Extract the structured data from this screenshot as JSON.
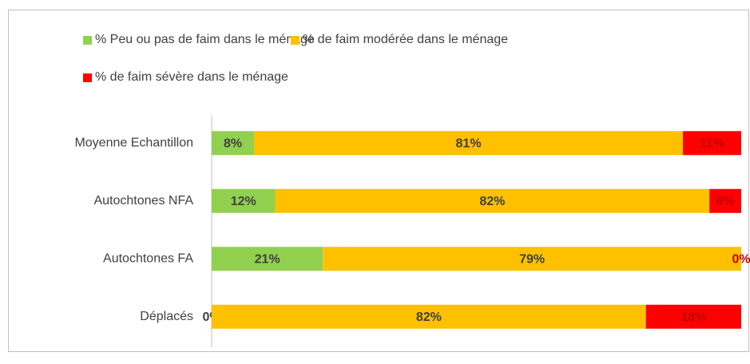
{
  "chart_data": {
    "type": "stacked-bar-horizontal",
    "categories": [
      "Moyenne Echantillon",
      "Autochtones NFA",
      "Autochtones FA",
      "Déplacés"
    ],
    "xlim": [
      0,
      100
    ],
    "series": [
      {
        "name": "% Peu ou pas de faim dans le ménage",
        "color": "#92d050",
        "values": [
          8,
          12,
          21,
          0
        ],
        "value_labels": [
          "8%",
          "12%",
          "21%",
          "0%"
        ]
      },
      {
        "name": "% de faim modérée dans le ménage",
        "color": "#ffc000",
        "values": [
          81,
          82,
          79,
          82
        ],
        "value_labels": [
          "81%",
          "82%",
          "79%",
          "82%"
        ]
      },
      {
        "name": "% de faim sévère dans le ménage",
        "color": "#ff0000",
        "values": [
          11,
          6,
          0,
          18
        ],
        "value_labels": [
          "11%",
          "6%",
          "0%",
          "18%"
        ]
      }
    ]
  }
}
